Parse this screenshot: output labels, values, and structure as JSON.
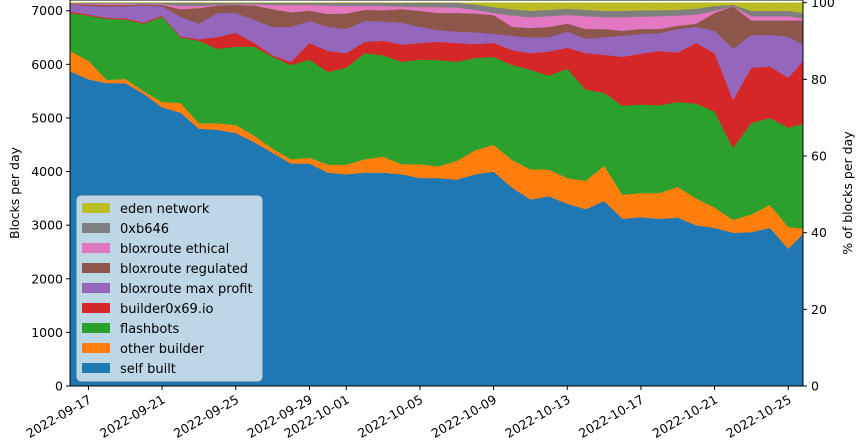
{
  "chart_data": {
    "type": "area",
    "stacked": true,
    "title": "",
    "xlabel": "",
    "ylabel": "Blocks per day",
    "ylabel_right": "% of blocks per day",
    "ylim": [
      0,
      7200
    ],
    "ylim_right": [
      0,
      100
    ],
    "total_per_day": 7150,
    "xlim_days": [
      0,
      39.8
    ],
    "x": [
      "2022-09-16",
      "2022-09-17",
      "2022-09-18",
      "2022-09-19",
      "2022-09-20",
      "2022-09-21",
      "2022-09-22",
      "2022-09-23",
      "2022-09-24",
      "2022-09-25",
      "2022-09-26",
      "2022-09-27",
      "2022-09-28",
      "2022-09-29",
      "2022-09-30",
      "2022-10-01",
      "2022-10-02",
      "2022-10-03",
      "2022-10-04",
      "2022-10-05",
      "2022-10-06",
      "2022-10-07",
      "2022-10-08",
      "2022-10-09",
      "2022-10-10",
      "2022-10-11",
      "2022-10-12",
      "2022-10-13",
      "2022-10-14",
      "2022-10-15",
      "2022-10-16",
      "2022-10-17",
      "2022-10-18",
      "2022-10-19",
      "2022-10-20",
      "2022-10-21",
      "2022-10-22",
      "2022-10-23",
      "2022-10-24",
      "2022-10-25",
      "2022-10-26"
    ],
    "xticks": [
      {
        "label": "2022-09-17",
        "day": 1
      },
      {
        "label": "2022-09-21",
        "day": 5
      },
      {
        "label": "2022-09-25",
        "day": 9
      },
      {
        "label": "2022-09-29",
        "day": 13
      },
      {
        "label": "2022-10-01",
        "day": 15
      },
      {
        "label": "2022-10-05",
        "day": 19
      },
      {
        "label": "2022-10-09",
        "day": 23
      },
      {
        "label": "2022-10-13",
        "day": 27
      },
      {
        "label": "2022-10-17",
        "day": 31
      },
      {
        "label": "2022-10-21",
        "day": 35
      },
      {
        "label": "2022-10-25",
        "day": 39
      }
    ],
    "yticks": [
      "0",
      "1000",
      "2000",
      "3000",
      "4000",
      "5000",
      "6000",
      "7000"
    ],
    "yticks_right": [
      "0",
      "20",
      "40",
      "60",
      "80",
      "100"
    ],
    "legend_position": "lower-left",
    "series": [
      {
        "name": "self built",
        "color": "#1f77b4",
        "values": [
          5870,
          5720,
          5650,
          5650,
          5450,
          5200,
          5100,
          4800,
          4780,
          4720,
          4550,
          4350,
          4150,
          4150,
          3980,
          3950,
          3980,
          3980,
          3950,
          3880,
          3880,
          3850,
          3950,
          4000,
          3700,
          3480,
          3540,
          3400,
          3300,
          3450,
          3120,
          3150,
          3120,
          3140,
          3000,
          2950,
          2860,
          2870,
          2950,
          2560,
          2910
        ]
      },
      {
        "name": "other builder",
        "color": "#ff7f0e",
        "values": [
          380,
          350,
          60,
          80,
          50,
          100,
          180,
          100,
          120,
          150,
          120,
          80,
          80,
          110,
          150,
          180,
          250,
          300,
          190,
          260,
          220,
          350,
          450,
          500,
          520,
          560,
          500,
          480,
          530,
          660,
          450,
          450,
          480,
          575,
          500,
          380,
          240,
          330,
          430,
          410,
          20
        ]
      },
      {
        "name": "flashbots",
        "color": "#2ca02c",
        "values": [
          710,
          840,
          1140,
          1110,
          1260,
          1590,
          1220,
          1540,
          1390,
          1460,
          1660,
          1710,
          1760,
          1830,
          1730,
          1810,
          1980,
          1890,
          1910,
          1950,
          1980,
          1850,
          1720,
          1640,
          1770,
          1860,
          1750,
          2040,
          1700,
          1360,
          1660,
          1650,
          1640,
          1585,
          1770,
          1790,
          1340,
          1710,
          1620,
          1850,
          1980
        ]
      },
      {
        "name": "builder0x69.io",
        "color": "#d62728",
        "values": [
          30,
          20,
          20,
          20,
          20,
          20,
          20,
          30,
          220,
          260,
          70,
          30,
          60,
          310,
          390,
          270,
          210,
          270,
          320,
          310,
          340,
          350,
          260,
          260,
          280,
          310,
          450,
          390,
          680,
          710,
          910,
          950,
          1010,
          920,
          1130,
          1090,
          900,
          1030,
          960,
          930,
          1230
        ]
      },
      {
        "name": "bloxroute max profit",
        "color": "#9467bd",
        "values": [
          130,
          160,
          210,
          220,
          320,
          170,
          370,
          290,
          450,
          370,
          430,
          530,
          650,
          410,
          450,
          450,
          390,
          360,
          410,
          300,
          220,
          210,
          220,
          170,
          265,
          290,
          270,
          300,
          270,
          330,
          390,
          370,
          330,
          440,
          300,
          420,
          950,
          610,
          590,
          770,
          190
        ]
      },
      {
        "name": "bloxroute regulated",
        "color": "#8c564b",
        "values": [
          10,
          30,
          30,
          30,
          20,
          30,
          140,
          290,
          140,
          150,
          270,
          330,
          270,
          190,
          240,
          290,
          210,
          210,
          250,
          300,
          320,
          350,
          350,
          350,
          165,
          180,
          190,
          150,
          180,
          150,
          100,
          90,
          80,
          60,
          60,
          330,
          790,
          270,
          270,
          300,
          490
        ]
      },
      {
        "name": "bloxroute ethical",
        "color": "#e377c2",
        "values": [
          5,
          15,
          20,
          20,
          10,
          15,
          60,
          40,
          10,
          10,
          20,
          80,
          140,
          110,
          160,
          140,
          70,
          80,
          50,
          70,
          110,
          100,
          70,
          40,
          210,
          200,
          200,
          160,
          240,
          220,
          250,
          230,
          240,
          190,
          170,
          40,
          0,
          80,
          80,
          80,
          30
        ]
      },
      {
        "name": "0xb646",
        "color": "#7f7f7f",
        "values": [
          15,
          15,
          20,
          20,
          20,
          25,
          60,
          60,
          40,
          30,
          30,
          40,
          40,
          40,
          50,
          60,
          60,
          60,
          70,
          80,
          80,
          90,
          100,
          110,
          120,
          120,
          120,
          120,
          120,
          120,
          120,
          120,
          110,
          110,
          110,
          90,
          30,
          100,
          100,
          100,
          100
        ]
      },
      {
        "name": "eden network",
        "color": "#bcbd22",
        "values": [
          0,
          0,
          0,
          0,
          0,
          0,
          0,
          0,
          0,
          0,
          0,
          0,
          0,
          0,
          0,
          0,
          0,
          0,
          0,
          0,
          0,
          0,
          30,
          80,
          120,
          150,
          130,
          110,
          130,
          150,
          150,
          140,
          140,
          130,
          110,
          60,
          40,
          150,
          150,
          150,
          200
        ]
      }
    ]
  }
}
